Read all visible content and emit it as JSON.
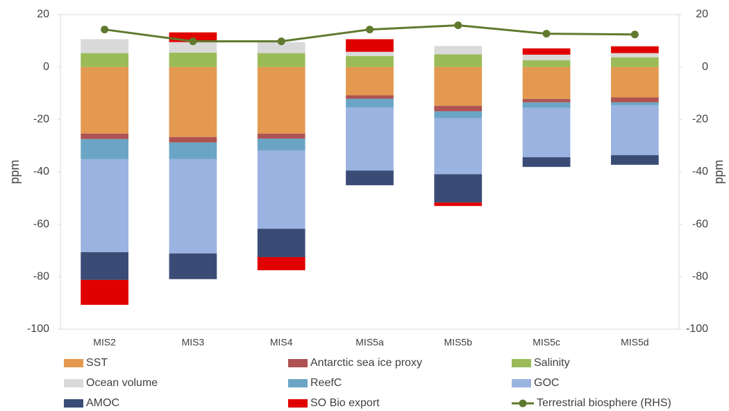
{
  "chart_data": {
    "type": "bar",
    "stacked": true,
    "y_label": "ppm",
    "y2_label": "ppm",
    "categories": [
      "MIS2",
      "MIS3",
      "MIS4",
      "MIS5a",
      "MIS5b",
      "MIS5c",
      "MIS5d"
    ],
    "ylim": [
      -100,
      20
    ],
    "yticks": [
      20,
      0,
      -20,
      -40,
      -60,
      -80,
      -100
    ],
    "y2lim": [
      -100,
      20
    ],
    "y2ticks": [
      20,
      0,
      -20,
      -40,
      -60,
      -80,
      -100
    ],
    "series": [
      {
        "name": "SST",
        "color": "#e3994f",
        "values": [
          -25.4,
          -26.7,
          -25.4,
          -10.8,
          -14.8,
          -12.2,
          -11.6
        ]
      },
      {
        "name": "Antarctic sea ice proxy",
        "color": "#ae5352",
        "values": [
          -2.1,
          -2.1,
          -1.9,
          -1.3,
          -2.1,
          -1.3,
          -1.9
        ]
      },
      {
        "name": "Salinity",
        "color": "#9bbb59",
        "values": [
          5.3,
          5.5,
          5.3,
          4.2,
          4.8,
          2.6,
          3.7
        ]
      },
      {
        "name": "Ocean volume",
        "color": "#d9d9d9",
        "values": [
          5.3,
          4.0,
          4.2,
          1.6,
          3.2,
          2.1,
          1.6
        ]
      },
      {
        "name": "ReefC",
        "color": "#6ba5c5",
        "values": [
          -7.7,
          -6.3,
          -4.5,
          -3.4,
          -2.6,
          -2.1,
          -1.1
        ]
      },
      {
        "name": "GOC",
        "color": "#9bb3e0",
        "values": [
          -35.4,
          -36.0,
          -29.9,
          -24.0,
          -21.4,
          -18.8,
          -19.0
        ]
      },
      {
        "name": "AMOC",
        "color": "#3a4c76",
        "values": [
          -10.6,
          -9.8,
          -10.8,
          -5.6,
          -10.8,
          -3.7,
          -3.7
        ]
      },
      {
        "name": "SO Bio export",
        "color": "#e00000",
        "values": [
          -9.5,
          3.7,
          -5.0,
          4.8,
          -1.3,
          2.4,
          2.6
        ]
      },
      {
        "name": "Terrestrial biosphere (RHS)",
        "type": "line",
        "axis": "y2",
        "color": "#5f7a2e",
        "values": [
          14.3,
          9.8,
          9.8,
          14.3,
          15.9,
          12.7,
          12.4
        ]
      }
    ]
  }
}
